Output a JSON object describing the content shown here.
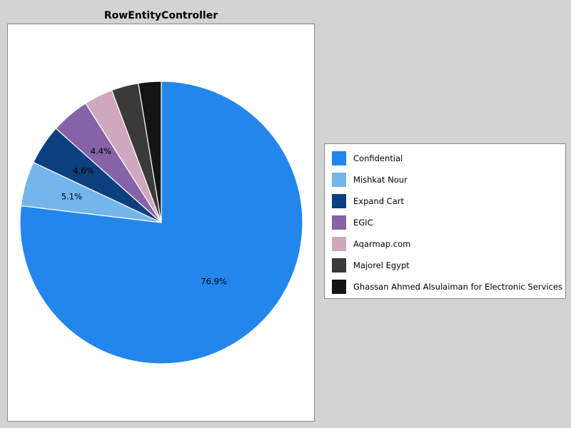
{
  "chart_data": {
    "type": "pie",
    "title": "RowEntityController",
    "start_angle_deg": 90,
    "direction": "clockwise",
    "legend_position": "right",
    "slices": [
      {
        "label": "Confidential",
        "value": 76.9,
        "color": "#2286ec",
        "data_label": "76.9%"
      },
      {
        "label": "Mishkat Nour",
        "value": 5.1,
        "color": "#74b5ea",
        "data_label": "5.1%"
      },
      {
        "label": "Expand Cart",
        "value": 4.6,
        "color": "#0b3f7e",
        "data_label": "4.6%"
      },
      {
        "label": "EGIC",
        "value": 4.4,
        "color": "#8663a6",
        "data_label": "4.4%"
      },
      {
        "label": "Aqarmap.com",
        "value": 3.3,
        "color": "#d0a8bd",
        "data_label": ""
      },
      {
        "label": "Majorel Egypt",
        "value": 3.1,
        "color": "#3a3a3a",
        "data_label": ""
      },
      {
        "label": "Ghassan Ahmed Alsulaiman for Electronic Services",
        "value": 2.6,
        "color": "#141414",
        "data_label": ""
      }
    ]
  }
}
